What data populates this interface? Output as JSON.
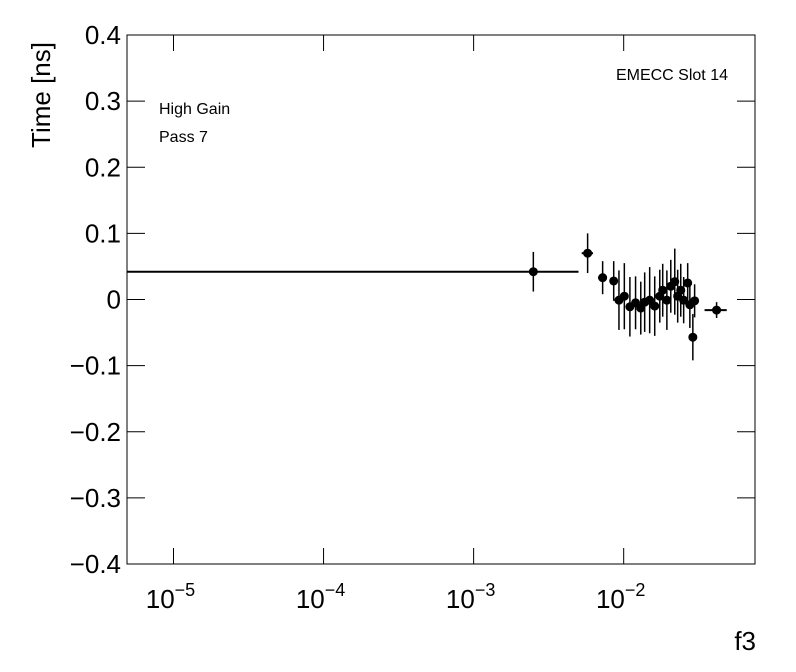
{
  "chart_data": {
    "type": "errorbar-scatter",
    "annotations": [
      "EMECC Slot 14",
      "High Gain",
      "Pass 7"
    ],
    "ylabel": "Time [ns]",
    "xlabel": "f3",
    "xscale": "log",
    "color": "#000000",
    "xlim": [
      4.9e-06,
      0.075
    ],
    "ylim": [
      -0.4,
      0.4
    ],
    "xticks": [
      {
        "value": 1e-05,
        "label": "10",
        "sup": "−5"
      },
      {
        "value": 0.0001,
        "label": "10",
        "sup": "−4"
      },
      {
        "value": 0.001,
        "label": "10",
        "sup": "−3"
      },
      {
        "value": 0.01,
        "label": "10",
        "sup": "−2"
      }
    ],
    "yticks": [
      {
        "value": -0.4,
        "label": "−0.4"
      },
      {
        "value": -0.3,
        "label": "−0.3"
      },
      {
        "value": -0.2,
        "label": "−0.2"
      },
      {
        "value": -0.1,
        "label": "−0.1"
      },
      0,
      0.1,
      0.2,
      0.3,
      0.4
    ],
    "x": [
      0.0025,
      0.00575,
      0.00724,
      0.00858,
      0.0093,
      0.0101,
      0.011,
      0.012,
      0.013,
      0.0138,
      0.0149,
      0.0161,
      0.0174,
      0.0182,
      0.0194,
      0.0206,
      0.0219,
      0.0229,
      0.024,
      0.0251,
      0.0267,
      0.0276,
      0.0289,
      0.0297,
      0.0416
    ],
    "xerr": [
      0.0025,
      0.0005,
      0.0005,
      0.0004,
      0.0003,
      0.0003,
      0.0003,
      0.0003,
      0.0003,
      0.0003,
      0.0003,
      0.0003,
      0.0003,
      0.0003,
      0.0003,
      0.0003,
      0.0003,
      0.0003,
      0.0003,
      0.0003,
      0.0003,
      0.0003,
      0.0003,
      0.0004,
      0.007
    ],
    "values": [
      0.042,
      0.07,
      0.033,
      0.028,
      -0.001,
      0.005,
      -0.011,
      -0.005,
      -0.013,
      -0.004,
      -0.001,
      -0.01,
      0.005,
      0.014,
      -0.001,
      0.02,
      0.027,
      0.005,
      0.014,
      -0.001,
      0.025,
      -0.008,
      -0.057,
      -0.002,
      -0.016
    ],
    "yerr": [
      0.03,
      0.03,
      0.025,
      0.03,
      0.045,
      0.05,
      0.045,
      0.04,
      0.04,
      0.045,
      0.05,
      0.045,
      0.04,
      0.04,
      0.045,
      0.04,
      0.05,
      0.04,
      0.04,
      0.035,
      0.03,
      0.035,
      0.035,
      0.025,
      0.012
    ]
  }
}
